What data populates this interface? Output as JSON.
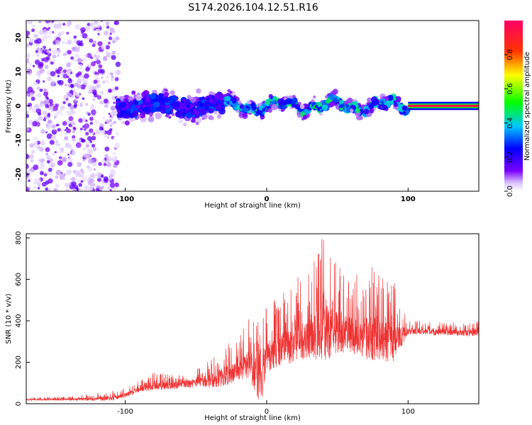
{
  "chart_data": [
    {
      "type": "heatmap",
      "title": "S174.2026.104.12.51.R16",
      "xlabel": "Height of straight line (km)",
      "ylabel": "Frequency (Hz)",
      "xlim": [
        -170,
        150
      ],
      "ylim": [
        -25,
        25
      ],
      "xticks": [
        -100,
        0,
        100
      ],
      "yticks": [
        -20,
        -10,
        0,
        10,
        20
      ],
      "colorbar": {
        "label": "Normalized spectral amplitude",
        "range": [
          0.0,
          1.0
        ],
        "ticks": [
          "0.0",
          "0.2",
          "0.4",
          "0.6",
          "0.8"
        ],
        "tick_values": [
          0.0,
          0.2,
          0.4,
          0.6,
          0.8
        ]
      },
      "regions": [
        {
          "x_range": [
            -170,
            -105
          ],
          "freq_center": 0,
          "freq_spread": 25,
          "amplitude": 0.12,
          "description": "noise"
        },
        {
          "x_range": [
            -105,
            -30
          ],
          "freq_center": 0,
          "freq_spread": 6,
          "amplitude": 0.2
        },
        {
          "x_range": [
            -30,
            100
          ],
          "freq_center": 0,
          "freq_spread": 3,
          "amplitude": 0.35
        },
        {
          "x_range": [
            100,
            150
          ],
          "freq_center": 0,
          "freq_spread": 0.5,
          "amplitude": 0.95
        }
      ]
    },
    {
      "type": "line",
      "title": "",
      "xlabel": "Height of straight line (km)",
      "ylabel": "SNR (10 * v/v)",
      "xlim": [
        -170,
        150
      ],
      "ylim": [
        0,
        820
      ],
      "xticks": [
        -100,
        0,
        100
      ],
      "yticks": [
        0,
        200,
        400,
        600,
        800
      ],
      "series": [
        {
          "name": "SNR",
          "color": "#ee3333",
          "x": [
            -170,
            -140,
            -110,
            -100,
            -90,
            -80,
            -70,
            -60,
            -50,
            -40,
            -30,
            -20,
            -12,
            -5,
            0,
            10,
            20,
            30,
            40,
            50,
            60,
            70,
            80,
            90,
            100,
            110,
            120,
            130,
            140,
            150
          ],
          "values": [
            20,
            20,
            25,
            40,
            70,
            85,
            85,
            95,
            100,
            110,
            130,
            160,
            190,
            60,
            230,
            260,
            290,
            320,
            340,
            340,
            330,
            320,
            310,
            290,
            350,
            350,
            345,
            345,
            340,
            345
          ],
          "max": [
            30,
            35,
            60,
            80,
            110,
            150,
            145,
            155,
            170,
            220,
            290,
            320,
            440,
            430,
            480,
            530,
            600,
            650,
            820,
            680,
            620,
            680,
            650,
            600,
            400,
            400,
            395,
            395,
            390,
            400
          ]
        }
      ]
    }
  ],
  "colors": {
    "snr_line": "#ee3333",
    "colormap": [
      "#ffffff",
      "#7a00ff",
      "#0000ff",
      "#00c8ff",
      "#00ff00",
      "#ffff00",
      "#ff0000",
      "#ff0066"
    ]
  }
}
